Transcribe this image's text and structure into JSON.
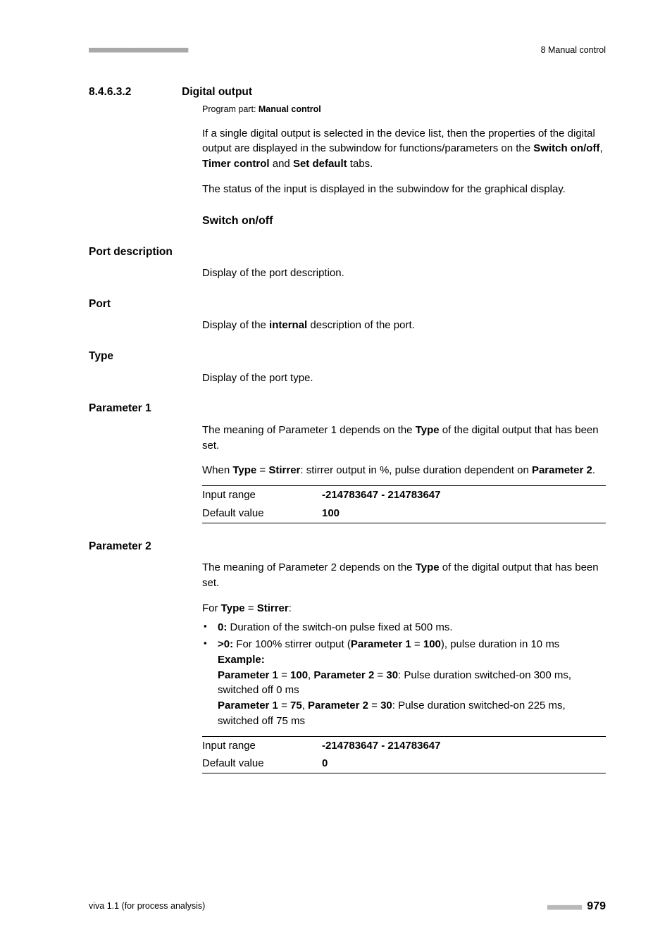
{
  "header": {
    "left_marks": "■■■■■■■■■■■■■■■■■■■■■■■",
    "right_text": "8 Manual control"
  },
  "section": {
    "number": "8.4.6.3.2",
    "title": "Digital output",
    "program_part_label": "Program part: ",
    "program_part_value": "Manual control",
    "intro_p1_a": "If a single digital output is selected in the device list, then the properties of the digital output are displayed in the subwindow for functions/parameters on the ",
    "intro_p1_b1": "Switch on/off",
    "intro_p1_sep1": ", ",
    "intro_p1_b2": "Timer control",
    "intro_p1_sep2": " and ",
    "intro_p1_b3": "Set default",
    "intro_p1_end": " tabs.",
    "intro_p2": "The status of the input is displayed in the subwindow for the graphical display.",
    "switch_heading": "Switch on/off"
  },
  "fields": {
    "port_description": {
      "label": "Port description",
      "body": "Display of the port description."
    },
    "port": {
      "label": "Port",
      "body_a": "Display of the ",
      "body_b": "internal",
      "body_c": " description of the port."
    },
    "type": {
      "label": "Type",
      "body": "Display of the port type."
    },
    "param1": {
      "label": "Parameter 1",
      "body1_a": "The meaning of Parameter 1 depends on the ",
      "body1_b": "Type",
      "body1_c": " of the digital output that has been set.",
      "body2_a": "When ",
      "body2_b": "Type",
      "body2_eq": " = ",
      "body2_c": "Stirrer",
      "body2_d": ": stirrer output in %, pulse duration dependent on ",
      "body2_e": "Parameter 2",
      "body2_f": ".",
      "range_label": "Input range",
      "range_value": "-214783647 - 214783647",
      "default_label": "Default value",
      "default_value": "100"
    },
    "param2": {
      "label": "Parameter 2",
      "body1_a": "The meaning of Parameter 2 depends on the ",
      "body1_b": "Type",
      "body1_c": " of the digital output that has been set.",
      "for_a": "For ",
      "for_b": "Type",
      "for_eq": " = ",
      "for_c": "Stirrer",
      "for_d": ":",
      "bullet1_a": "0:",
      "bullet1_b": " Duration of the switch-on pulse fixed at 500 ms.",
      "bullet2_a": ">0:",
      "bullet2_b": " For 100% stirrer output (",
      "bullet2_c": "Parameter 1",
      "bullet2_eq": " = ",
      "bullet2_d": "100",
      "bullet2_e": "), pulse duration in 10 ms",
      "example_label": "Example:",
      "ex1_a": "Parameter 1",
      "ex1_eq1": " = ",
      "ex1_b": "100",
      "ex1_sep": ", ",
      "ex1_c": "Parameter 2",
      "ex1_eq2": " = ",
      "ex1_d": "30",
      "ex1_e": ": Pulse duration switched-on 300 ms, switched off 0 ms",
      "ex2_a": "Parameter 1",
      "ex2_eq1": " = ",
      "ex2_b": "75",
      "ex2_sep": ", ",
      "ex2_c": "Parameter 2",
      "ex2_eq2": " = ",
      "ex2_d": "30",
      "ex2_e": ": Pulse duration switched-on 225 ms, switched off 75 ms",
      "range_label": "Input range",
      "range_value": "-214783647 - 214783647",
      "default_label": "Default value",
      "default_value": "0"
    }
  },
  "footer": {
    "left": "viva 1.1 (for process analysis)",
    "marks": "■■■■■■■■",
    "page": "979"
  }
}
